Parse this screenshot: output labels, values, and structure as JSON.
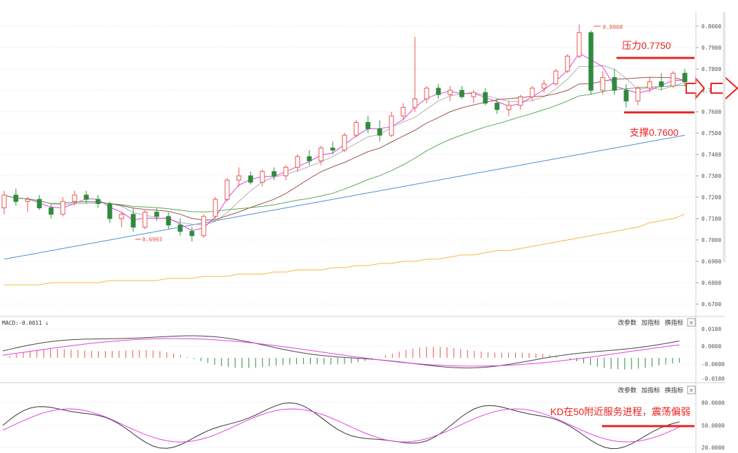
{
  "price_axis_ticks": [
    "0.8000",
    "0.7900",
    "0.7800",
    "0.7700",
    "0.7600",
    "0.7500",
    "0.7400",
    "0.7300",
    "0.7200",
    "0.7100",
    "0.7000",
    "0.6900",
    "0.6800",
    "0.6700"
  ],
  "macd_axis_ticks": [
    "0.0100",
    "0.0000",
    "-0.0000",
    "-0.0100"
  ],
  "kd_axis_ticks": [
    "80.0000",
    "50.0000",
    "20.0000"
  ],
  "macd_label": "MACD:-0.0011 ↓",
  "panel_buttons": {
    "params": "改参数",
    "add": "加指标",
    "switch": "换指标",
    "close": "✕"
  },
  "high_marker": "0.8008",
  "low_marker": "0.6993",
  "annotations": {
    "resistance": "压力0.7750",
    "support": "支撑0.7600",
    "kd_note": "KD在50附近服务进程，震荡偏弱"
  },
  "colors": {
    "up": "#e8534f",
    "down": "#2f8a3e",
    "annotation": "#e8221f",
    "ma_blue": "#4a90d9",
    "ma_orange": "#f4b942",
    "ma_green": "#5aa85a",
    "ma_brown": "#a0524d",
    "ma_pink": "#e040e0",
    "ma_gray": "#b0b0b0"
  },
  "chart_data": [
    {
      "type": "candlestick",
      "title": "",
      "ylim": [
        0.665,
        0.805
      ],
      "candles": [
        [
          0.715,
          0.723,
          0.712,
          0.721
        ],
        [
          0.721,
          0.724,
          0.716,
          0.718
        ],
        [
          0.718,
          0.72,
          0.713,
          0.719
        ],
        [
          0.719,
          0.721,
          0.714,
          0.715
        ],
        [
          0.715,
          0.717,
          0.71,
          0.712
        ],
        [
          0.712,
          0.72,
          0.711,
          0.718
        ],
        [
          0.718,
          0.723,
          0.716,
          0.721
        ],
        [
          0.721,
          0.723,
          0.717,
          0.719
        ],
        [
          0.719,
          0.721,
          0.715,
          0.717
        ],
        [
          0.717,
          0.718,
          0.708,
          0.71
        ],
        [
          0.71,
          0.713,
          0.706,
          0.712
        ],
        [
          0.712,
          0.715,
          0.704,
          0.706
        ],
        [
          0.706,
          0.714,
          0.705,
          0.713
        ],
        [
          0.713,
          0.715,
          0.709,
          0.711
        ],
        [
          0.711,
          0.713,
          0.705,
          0.707
        ],
        [
          0.707,
          0.71,
          0.702,
          0.704
        ],
        [
          0.704,
          0.706,
          0.6993,
          0.702
        ],
        [
          0.702,
          0.712,
          0.701,
          0.711
        ],
        [
          0.711,
          0.72,
          0.71,
          0.719
        ],
        [
          0.719,
          0.729,
          0.718,
          0.728
        ],
        [
          0.728,
          0.734,
          0.725,
          0.73
        ],
        [
          0.73,
          0.732,
          0.726,
          0.727
        ],
        [
          0.727,
          0.733,
          0.725,
          0.732
        ],
        [
          0.732,
          0.734,
          0.728,
          0.73
        ],
        [
          0.73,
          0.735,
          0.728,
          0.734
        ],
        [
          0.734,
          0.74,
          0.732,
          0.739
        ],
        [
          0.739,
          0.742,
          0.735,
          0.737
        ],
        [
          0.737,
          0.744,
          0.735,
          0.743
        ],
        [
          0.743,
          0.746,
          0.74,
          0.742
        ],
        [
          0.742,
          0.75,
          0.741,
          0.749
        ],
        [
          0.749,
          0.756,
          0.748,
          0.755
        ],
        [
          0.755,
          0.758,
          0.75,
          0.752
        ],
        [
          0.752,
          0.756,
          0.746,
          0.749
        ],
        [
          0.749,
          0.76,
          0.748,
          0.758
        ],
        [
          0.758,
          0.764,
          0.756,
          0.762
        ],
        [
          0.762,
          0.795,
          0.76,
          0.766
        ],
        [
          0.766,
          0.772,
          0.764,
          0.771
        ],
        [
          0.771,
          0.773,
          0.766,
          0.768
        ],
        [
          0.768,
          0.772,
          0.765,
          0.77
        ],
        [
          0.77,
          0.772,
          0.766,
          0.767
        ],
        [
          0.767,
          0.77,
          0.764,
          0.769
        ],
        [
          0.769,
          0.771,
          0.763,
          0.764
        ],
        [
          0.764,
          0.766,
          0.759,
          0.761
        ],
        [
          0.761,
          0.765,
          0.758,
          0.763
        ],
        [
          0.763,
          0.768,
          0.761,
          0.767
        ],
        [
          0.767,
          0.772,
          0.765,
          0.771
        ],
        [
          0.771,
          0.775,
          0.769,
          0.773
        ],
        [
          0.773,
          0.78,
          0.772,
          0.779
        ],
        [
          0.779,
          0.787,
          0.778,
          0.786
        ],
        [
          0.786,
          0.8008,
          0.785,
          0.797
        ],
        [
          0.797,
          0.798,
          0.768,
          0.77
        ],
        [
          0.77,
          0.779,
          0.768,
          0.776
        ],
        [
          0.776,
          0.78,
          0.768,
          0.77
        ],
        [
          0.77,
          0.773,
          0.762,
          0.765
        ],
        [
          0.765,
          0.772,
          0.763,
          0.771
        ],
        [
          0.771,
          0.776,
          0.769,
          0.774
        ],
        [
          0.774,
          0.778,
          0.77,
          0.772
        ],
        [
          0.772,
          0.779,
          0.771,
          0.778
        ],
        [
          0.778,
          0.78,
          0.772,
          0.774
        ]
      ],
      "ma_series": [
        {
          "values": [
            0.691,
            0.692,
            0.693,
            0.694,
            0.695,
            0.696,
            0.697,
            0.698,
            0.699,
            0.7,
            0.701,
            0.702,
            0.703,
            0.704,
            0.705,
            0.706,
            0.707,
            0.708,
            0.709,
            0.71,
            0.711,
            0.712,
            0.713,
            0.714,
            0.715,
            0.716,
            0.717,
            0.718,
            0.719,
            0.72,
            0.721,
            0.722,
            0.723,
            0.724,
            0.725,
            0.726,
            0.727,
            0.728,
            0.729,
            0.73,
            0.731,
            0.732,
            0.733,
            0.734,
            0.735,
            0.736,
            0.737,
            0.738,
            0.739,
            0.74,
            0.741,
            0.742,
            0.743,
            0.744,
            0.745,
            0.746,
            0.747,
            0.748,
            0.749
          ]
        },
        {
          "values": [
            0.679,
            0.679,
            0.679,
            0.679,
            0.68,
            0.68,
            0.68,
            0.68,
            0.68,
            0.681,
            0.681,
            0.681,
            0.681,
            0.681,
            0.682,
            0.682,
            0.682,
            0.683,
            0.683,
            0.683,
            0.684,
            0.684,
            0.684,
            0.685,
            0.685,
            0.686,
            0.686,
            0.686,
            0.687,
            0.687,
            0.688,
            0.688,
            0.689,
            0.689,
            0.69,
            0.69,
            0.691,
            0.691,
            0.692,
            0.693,
            0.693,
            0.694,
            0.695,
            0.695,
            0.696,
            0.697,
            0.698,
            0.699,
            0.7,
            0.701,
            0.702,
            0.703,
            0.704,
            0.705,
            0.706,
            0.708,
            0.709,
            0.71,
            0.712
          ]
        }
      ]
    },
    {
      "type": "line",
      "title": "MACD",
      "ylim": [
        -0.012,
        0.012
      ]
    },
    {
      "type": "line",
      "title": "KD",
      "ylim": [
        0,
        100
      ]
    }
  ]
}
